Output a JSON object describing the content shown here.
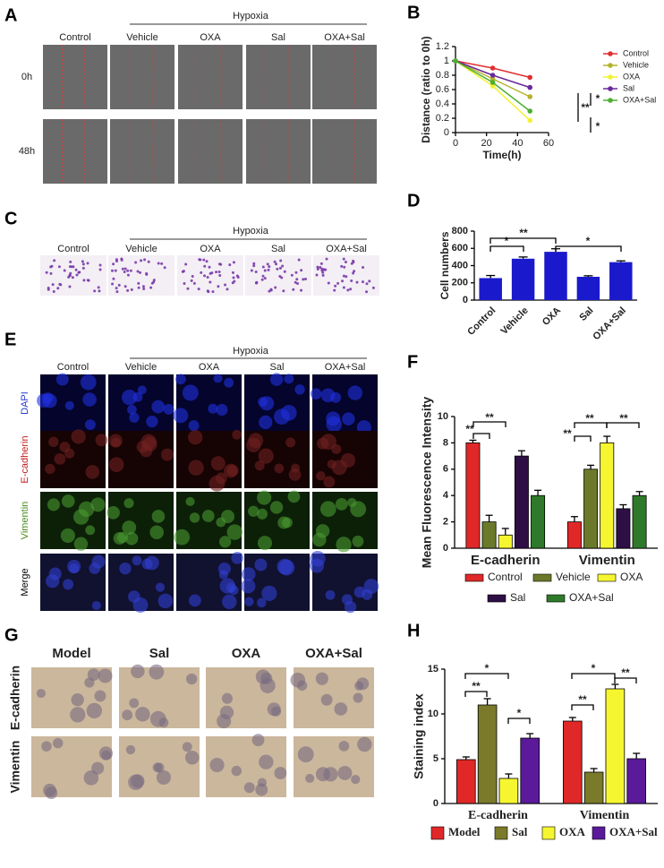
{
  "figure": {
    "A": {
      "letter": "A",
      "group": "Hypoxia",
      "columns": [
        "Control",
        "Vehicle",
        "OXA",
        "Sal",
        "OXA+Sal"
      ],
      "rows": [
        "0h",
        "48h"
      ]
    },
    "C": {
      "letter": "C",
      "group": "Hypoxia",
      "columns": [
        "Control",
        "Vehicle",
        "OXA",
        "Sal",
        "OXA+Sal"
      ]
    },
    "E": {
      "letter": "E",
      "group": "Hypoxia",
      "columns": [
        "Control",
        "Vehicle",
        "OXA",
        "Sal",
        "OXA+Sal"
      ],
      "rows": [
        "DAPI",
        "E-cadherin",
        "Vimentin",
        "Merge"
      ]
    },
    "G": {
      "letter": "G",
      "columns": [
        "Model",
        "Sal",
        "OXA",
        "OXA+Sal"
      ],
      "rows": [
        "E-cadherin",
        "Vimentin"
      ]
    }
  },
  "chart_data": [
    {
      "type": "line",
      "panel": "B",
      "xlabel": "Time(h)",
      "ylabel": "Distance (ratio to 0h)",
      "x": [
        0,
        24,
        48
      ],
      "xlim": [
        0,
        60
      ],
      "xticks": [
        0,
        20,
        40,
        60
      ],
      "ylim": [
        0,
        1.2
      ],
      "yticks": [
        0,
        0.2,
        0.4,
        0.6,
        0.8,
        1,
        1.2
      ],
      "series": [
        {
          "name": "Control",
          "color": "#e03030",
          "values": [
            1,
            0.9,
            0.77
          ]
        },
        {
          "name": "Vehicle",
          "color": "#b3b32a",
          "values": [
            1,
            0.75,
            0.5
          ]
        },
        {
          "name": "OXA",
          "color": "#f2f232",
          "values": [
            1,
            0.65,
            0.17
          ]
        },
        {
          "name": "Sal",
          "color": "#6a2a9a",
          "values": [
            1,
            0.8,
            0.63
          ]
        },
        {
          "name": "OXA+Sal",
          "color": "#4caf30",
          "values": [
            1,
            0.7,
            0.3
          ]
        }
      ],
      "annotations": [
        "*",
        "**",
        "*"
      ]
    },
    {
      "type": "bar",
      "panel": "D",
      "ylabel": "Cell numbers",
      "categories": [
        "Control",
        "Vehicle",
        "OXA",
        "Sal",
        "OXA+Sal"
      ],
      "values": [
        255,
        480,
        560,
        270,
        440
      ],
      "errors": [
        30,
        20,
        35,
        12,
        15
      ],
      "color": "#1a1acc",
      "ylim": [
        0,
        800
      ],
      "yticks": [
        0,
        200,
        400,
        600,
        800
      ],
      "annotations": [
        "*",
        "**",
        "*"
      ]
    },
    {
      "type": "bar",
      "panel": "F",
      "ylabel": "Mean Fluorescence Intensity",
      "categories": [
        "E-cadherin",
        "Vimentin"
      ],
      "ylim": [
        0,
        10
      ],
      "yticks": [
        0,
        2,
        4,
        6,
        8,
        10
      ],
      "series": [
        {
          "name": "Control",
          "color": "#e02828",
          "values": [
            8,
            2
          ],
          "errors": [
            0.2,
            0.4
          ]
        },
        {
          "name": "Vehicle",
          "color": "#6b7a2a",
          "values": [
            2,
            6
          ],
          "errors": [
            0.5,
            0.3
          ]
        },
        {
          "name": "OXA",
          "color": "#f6f630",
          "values": [
            1,
            8
          ],
          "errors": [
            0.5,
            0.5
          ]
        },
        {
          "name": "Sal",
          "color": "#2e0f45",
          "values": [
            7,
            3
          ],
          "errors": [
            0.4,
            0.3
          ]
        },
        {
          "name": "OXA+Sal",
          "color": "#2e7a2a",
          "values": [
            4,
            4
          ],
          "errors": [
            0.4,
            0.3
          ]
        }
      ],
      "annotations": [
        "**",
        "**",
        "**",
        "**",
        "**"
      ]
    },
    {
      "type": "bar",
      "panel": "H",
      "ylabel": "Staining index",
      "categories": [
        "E-cadherin",
        "Vimentin"
      ],
      "ylim": [
        0,
        15
      ],
      "yticks": [
        0,
        5,
        10,
        15
      ],
      "series": [
        {
          "name": "Model",
          "color": "#e02828",
          "values": [
            4.9,
            9.2
          ],
          "errors": [
            0.3,
            0.4
          ]
        },
        {
          "name": "Sal",
          "color": "#7a7a2a",
          "values": [
            11,
            3.5
          ],
          "errors": [
            0.7,
            0.4
          ]
        },
        {
          "name": "OXA",
          "color": "#f6f630",
          "values": [
            2.8,
            12.8
          ],
          "errors": [
            0.5,
            0.5
          ]
        },
        {
          "name": "OXA+Sal",
          "color": "#5a1a9a",
          "values": [
            7.3,
            5
          ],
          "errors": [
            0.5,
            0.6
          ]
        }
      ],
      "annotations": [
        "**",
        "*",
        "*",
        "*",
        "**",
        "**"
      ]
    }
  ]
}
